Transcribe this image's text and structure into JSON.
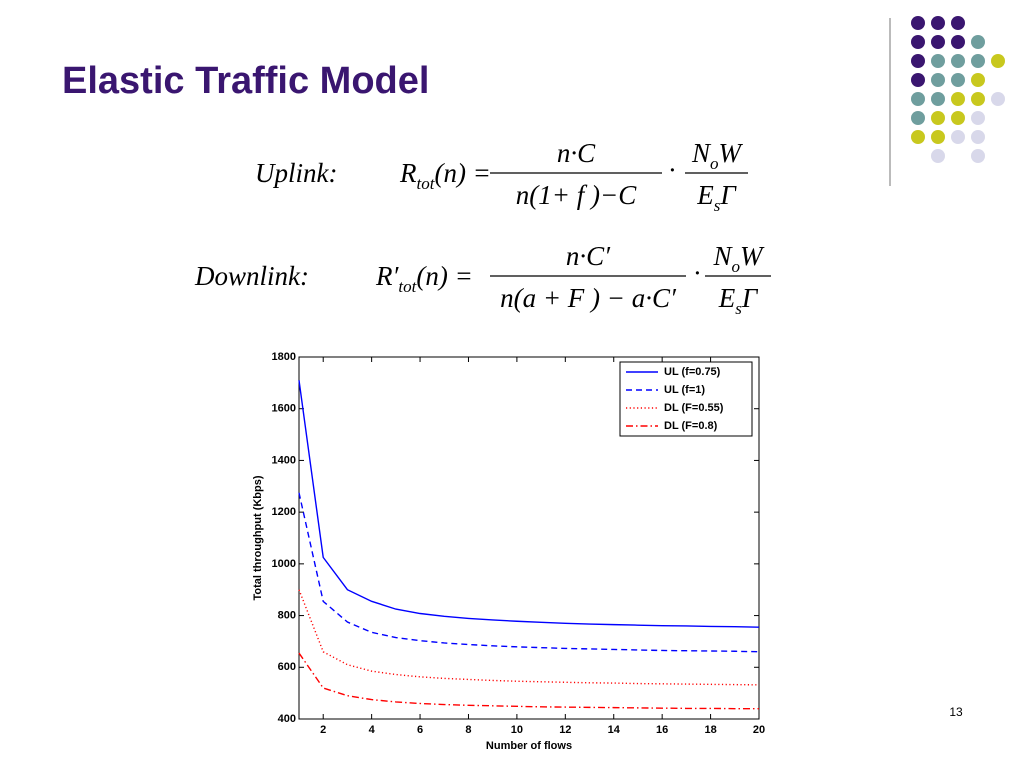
{
  "title": "Elastic Traffic Model",
  "operator": "·",
  "equations": [
    {
      "label": "Uplink:",
      "lhs": {
        "main": "R",
        "sub": "tot",
        "rest": "(n) ="
      },
      "num1": "n·C",
      "den1": "n(1+ f )−C",
      "num2": {
        "main": "N",
        "sub": "o",
        "rest": "W"
      },
      "den2": {
        "main": "E",
        "sub": "s",
        "rest": "Γ"
      }
    },
    {
      "label": "Downlink:",
      "lhs": {
        "main": "R′",
        "sub": "tot",
        "rest": "(n) ="
      },
      "num1": "n·C′",
      "den1": "n(a + F ) − a·C′",
      "num2": {
        "main": "N",
        "sub": "o",
        "rest": "W"
      },
      "den2": {
        "main": "E",
        "sub": "s",
        "rest": "Γ"
      }
    }
  ],
  "page_number": "13",
  "chart_data": {
    "type": "line",
    "x_label": "Number of flows",
    "y_label": "Total throughput (Kbps)",
    "x": [
      1,
      2,
      3,
      4,
      5,
      6,
      7,
      8,
      9,
      10,
      11,
      12,
      13,
      14,
      15,
      16,
      17,
      18,
      19,
      20
    ],
    "xlim": [
      1,
      20
    ],
    "xticks": [
      2,
      4,
      6,
      8,
      10,
      12,
      14,
      16,
      18,
      20
    ],
    "ylim": [
      400,
      1800
    ],
    "yticks": [
      400,
      600,
      800,
      1000,
      1200,
      1400,
      1600,
      1800
    ],
    "legend": "top-right",
    "series": [
      {
        "name": "UL (f=0.75)",
        "color": "#0000ff",
        "dash": "solid",
        "values": [
          1710,
          1025,
          900,
          855,
          825,
          808,
          797,
          789,
          783,
          778,
          774,
          770,
          767,
          765,
          763,
          761,
          760,
          758,
          757,
          755
        ]
      },
      {
        "name": "UL (f=1)",
        "color": "#0000ff",
        "dash": "dashed",
        "values": [
          1275,
          855,
          775,
          735,
          715,
          703,
          694,
          688,
          683,
          679,
          676,
          673,
          671,
          669,
          667,
          665,
          664,
          663,
          662,
          660
        ]
      },
      {
        "name": "DL (F=0.55)",
        "color": "#ff0000",
        "dash": "dotted",
        "values": [
          900,
          660,
          610,
          585,
          572,
          563,
          557,
          553,
          549,
          546,
          544,
          542,
          540,
          539,
          537,
          536,
          535,
          534,
          533,
          532
        ]
      },
      {
        "name": "DL (F=0.8)",
        "color": "#ff0000",
        "dash": "dashdot",
        "values": [
          655,
          520,
          490,
          475,
          466,
          460,
          456,
          453,
          451,
          449,
          447,
          446,
          445,
          444,
          443,
          442,
          441,
          441,
          440,
          440
        ]
      }
    ]
  }
}
